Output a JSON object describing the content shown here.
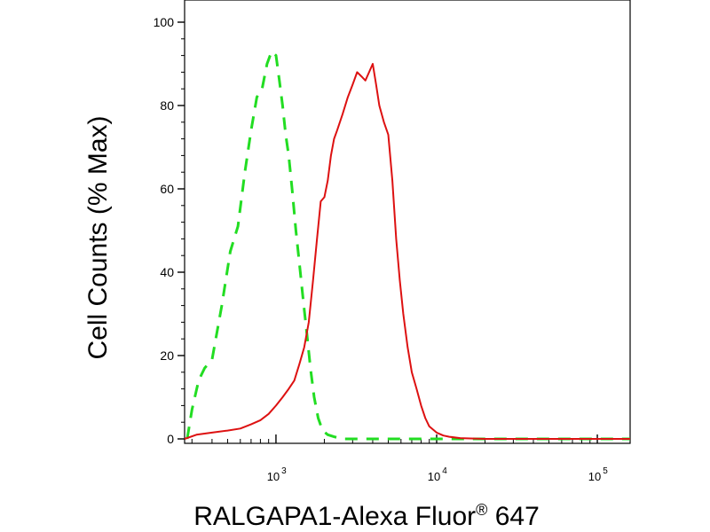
{
  "chart_data": {
    "type": "line",
    "xlabel": {
      "main": "RALGAPA1-Alexa Fluor",
      "mark": "®",
      "tail": " 647"
    },
    "ylabel": "Cell Counts (% Max)",
    "x_scale": "log",
    "xlim": [
      270,
      160000
    ],
    "ylim": [
      0,
      100
    ],
    "yticks": [
      0,
      20,
      40,
      60,
      80,
      100
    ],
    "xticks": [
      {
        "value": 1000,
        "base": "10",
        "exp": "3"
      },
      {
        "value": 10000,
        "base": "10",
        "exp": "4"
      },
      {
        "value": 100000,
        "base": "10",
        "exp": "5"
      }
    ],
    "grid": false,
    "legend": "none",
    "series": [
      {
        "color": "#22dd22",
        "dash": "dashed",
        "x": [
          280,
          300,
          330,
          360,
          400,
          460,
          520,
          580,
          640,
          700,
          760,
          820,
          880,
          940,
          1000,
          1050,
          1100,
          1150,
          1200,
          1260,
          1330,
          1400,
          1480,
          1560,
          1640,
          1730,
          1830,
          1950,
          2100,
          2300,
          2600,
          3000,
          5000,
          10000,
          100000,
          160000
        ],
        "y": [
          0,
          7,
          14,
          17,
          19,
          32,
          45,
          51,
          64,
          74,
          82,
          84,
          90,
          93,
          92,
          86,
          80,
          73,
          68,
          60,
          50,
          42,
          33,
          25,
          17,
          10,
          5,
          2,
          1,
          0.5,
          0,
          0,
          0,
          0,
          0,
          0
        ]
      },
      {
        "color": "#dd1111",
        "dash": "solid",
        "x": [
          270,
          320,
          400,
          500,
          600,
          700,
          800,
          900,
          1000,
          1100,
          1200,
          1300,
          1400,
          1500,
          1600,
          1700,
          1800,
          1900,
          2000,
          2100,
          2200,
          2300,
          2400,
          2600,
          2800,
          3000,
          3200,
          3400,
          3600,
          3800,
          4000,
          4200,
          4400,
          4700,
          5000,
          5300,
          5600,
          5900,
          6200,
          6600,
          7000,
          7500,
          8000,
          8500,
          9000,
          10000,
          11000,
          12000,
          14000,
          20000,
          50000,
          100000,
          160000
        ],
        "y": [
          0,
          1,
          1.5,
          2,
          2.5,
          3.5,
          4.5,
          6,
          8,
          10,
          12,
          14,
          18,
          22,
          28,
          38,
          48,
          57,
          58,
          62,
          68,
          72,
          74,
          78,
          82,
          85,
          88,
          87,
          86,
          88,
          90,
          85,
          80,
          76,
          73,
          62,
          48,
          38,
          30,
          22,
          16,
          12,
          8,
          5,
          3,
          1.5,
          0.8,
          0.5,
          0.2,
          0,
          0,
          0,
          0
        ]
      }
    ]
  }
}
